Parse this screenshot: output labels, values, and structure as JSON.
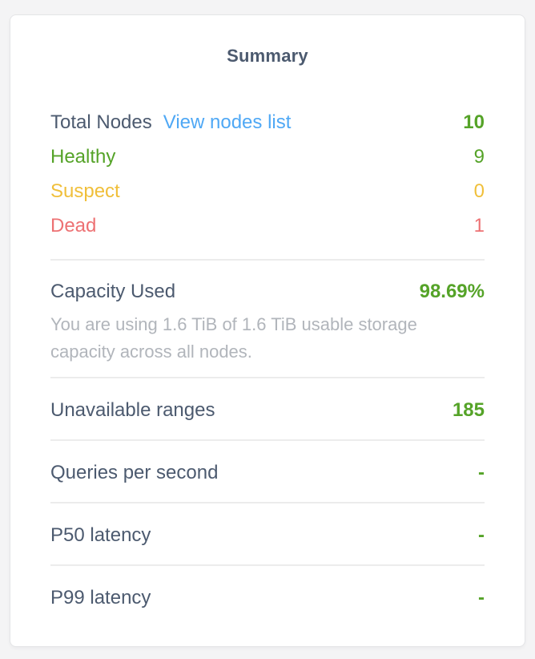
{
  "panel": {
    "title": "Summary",
    "nodes": {
      "total_label": "Total Nodes",
      "link_label": "View nodes list",
      "total_value": "10",
      "statuses": [
        {
          "label": "Healthy",
          "value": "9",
          "color": "#55a328"
        },
        {
          "label": "Suspect",
          "value": "0",
          "color": "#f0bf3a"
        },
        {
          "label": "Dead",
          "value": "1",
          "color": "#ed7173"
        }
      ]
    },
    "capacity": {
      "label": "Capacity Used",
      "value": "98.69%",
      "description": "You are using 1.6 TiB of 1.6 TiB usable storage capacity across all nodes."
    },
    "metrics": [
      {
        "label": "Unavailable ranges",
        "value": "185"
      },
      {
        "label": "Queries per second",
        "value": "-"
      },
      {
        "label": "P50 latency",
        "value": "-"
      },
      {
        "label": "P99 latency",
        "value": "-"
      }
    ],
    "colors": {
      "text_dark": "#4c5a6f",
      "green": "#55a328",
      "amber": "#f0bf3a",
      "rose": "#ed7173",
      "link_blue": "#4fa8f5",
      "divider": "#ececec",
      "card_background": "#ffffff",
      "page_background": "#f4f4f5"
    }
  }
}
